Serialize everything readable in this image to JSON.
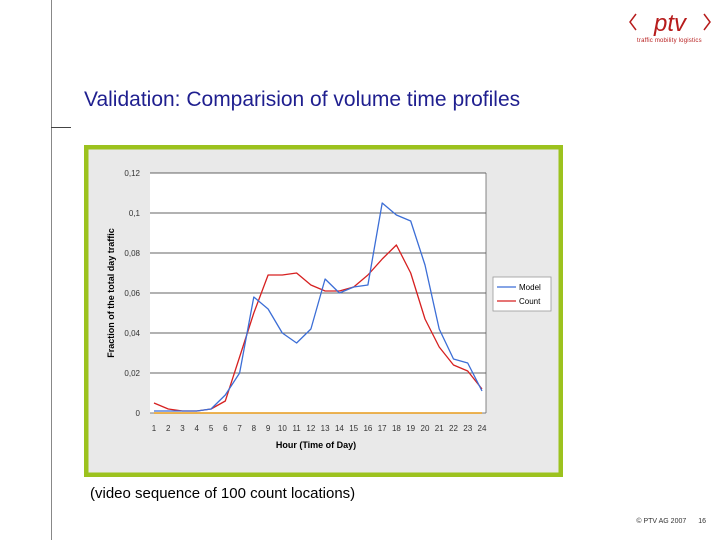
{
  "slide": {
    "title": "Validation: Comparision of volume time profiles",
    "caption": "(video sequence of 100 count locations)",
    "copyright": "© PTV AG 2007",
    "page_number": "16"
  },
  "logo": {
    "text": "ptv",
    "tagline": "traffic mobility logistics"
  },
  "colors": {
    "title": "#1f1f8f",
    "chart_border": "#9cc21e",
    "plot_background": "#ffffff",
    "model_line": "#3c6ed6",
    "count_line": "#d62020",
    "baseline_line": "#e89c1a"
  },
  "chart_data": {
    "type": "line",
    "xlabel": "Hour (Time of Day)",
    "ylabel": "Fraction of the total day traffic",
    "ylim": [
      0,
      0.12
    ],
    "y_ticks": [
      "0",
      "0,02",
      "0,04",
      "0,06",
      "0,08",
      "0,1",
      "0,12"
    ],
    "y_tick_values": [
      0,
      0.02,
      0.04,
      0.06,
      0.08,
      0.1,
      0.12
    ],
    "categories": [
      "1",
      "2",
      "3",
      "4",
      "5",
      "6",
      "7",
      "8",
      "9",
      "10",
      "11",
      "12",
      "13",
      "14",
      "15",
      "16",
      "17",
      "18",
      "19",
      "20",
      "21",
      "22",
      "23",
      "24"
    ],
    "grid": "horizontal",
    "legend_position": "right",
    "series": [
      {
        "name": "Model",
        "color": "#3c6ed6",
        "values": [
          0.001,
          0.001,
          0.001,
          0.001,
          0.002,
          0.009,
          0.02,
          0.058,
          0.052,
          0.04,
          0.035,
          0.042,
          0.067,
          0.06,
          0.063,
          0.064,
          0.105,
          0.099,
          0.096,
          0.074,
          0.042,
          0.027,
          0.025,
          0.011
        ]
      },
      {
        "name": "Count",
        "color": "#d62020",
        "values": [
          0.005,
          0.002,
          0.001,
          0.001,
          0.002,
          0.006,
          0.028,
          0.05,
          0.069,
          0.069,
          0.07,
          0.064,
          0.061,
          0.061,
          0.063,
          0.069,
          0.077,
          0.084,
          0.07,
          0.047,
          0.033,
          0.024,
          0.021,
          0.012
        ]
      },
      {
        "color": "#e89c1a",
        "values": [
          0,
          0,
          0,
          0,
          0,
          0,
          0,
          0,
          0,
          0,
          0,
          0,
          0,
          0,
          0,
          0,
          0,
          0,
          0,
          0,
          0,
          0,
          0,
          0
        ]
      }
    ]
  }
}
